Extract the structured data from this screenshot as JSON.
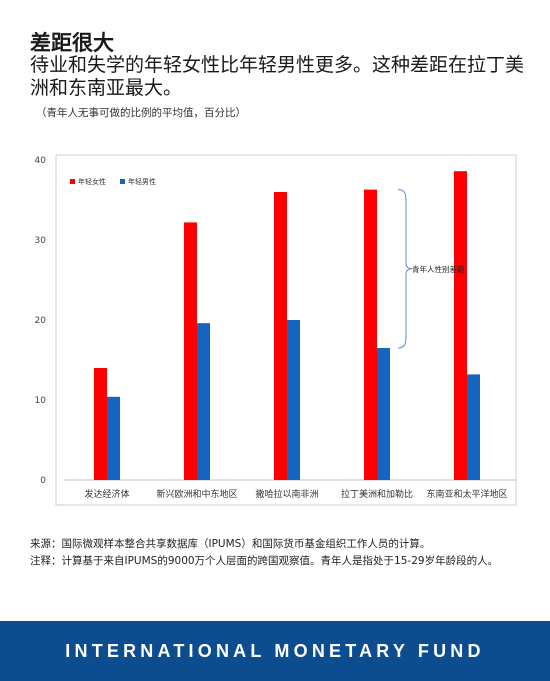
{
  "headline": "差距很大",
  "subheadline": "待业和失学的年轻女性比年轻男性更多。这种差距在拉丁美洲和东南亚最大。",
  "unit_note": "（青年人无事可做的比例的平均值，百分比）",
  "chart_data": {
    "type": "bar",
    "categories": [
      "发达经济体",
      "新兴欧洲和中东地区",
      "撒哈拉以南非洲",
      "拉丁美洲和加勒比",
      "东南亚和太平洋地区"
    ],
    "series": [
      {
        "name": "年轻女性",
        "color": "#ff0000",
        "values": [
          14,
          32.2,
          36,
          36.3,
          38.6
        ]
      },
      {
        "name": "年轻男性",
        "color": "#1464c0",
        "values": [
          10.4,
          19.6,
          20,
          16.5,
          13.2
        ]
      }
    ],
    "ylim": [
      0,
      40
    ],
    "yticks": [
      0,
      10,
      20,
      30,
      40
    ],
    "legend_position": "top-left",
    "grid": false,
    "annotation": "青年人性别差距"
  },
  "source_note": "来源：国际微观样本整合共享数据库（IPUMS）和国际货币基金组织工作人员的计算。",
  "footnote": "注释：计算基于来自IPUMS的9000万个人层面的跨国观察值。青年人是指处于15-29岁年龄段的人。",
  "footer": {
    "org_name": "INTERNATIONAL MONETARY FUND",
    "color": "#0b4d8f"
  }
}
